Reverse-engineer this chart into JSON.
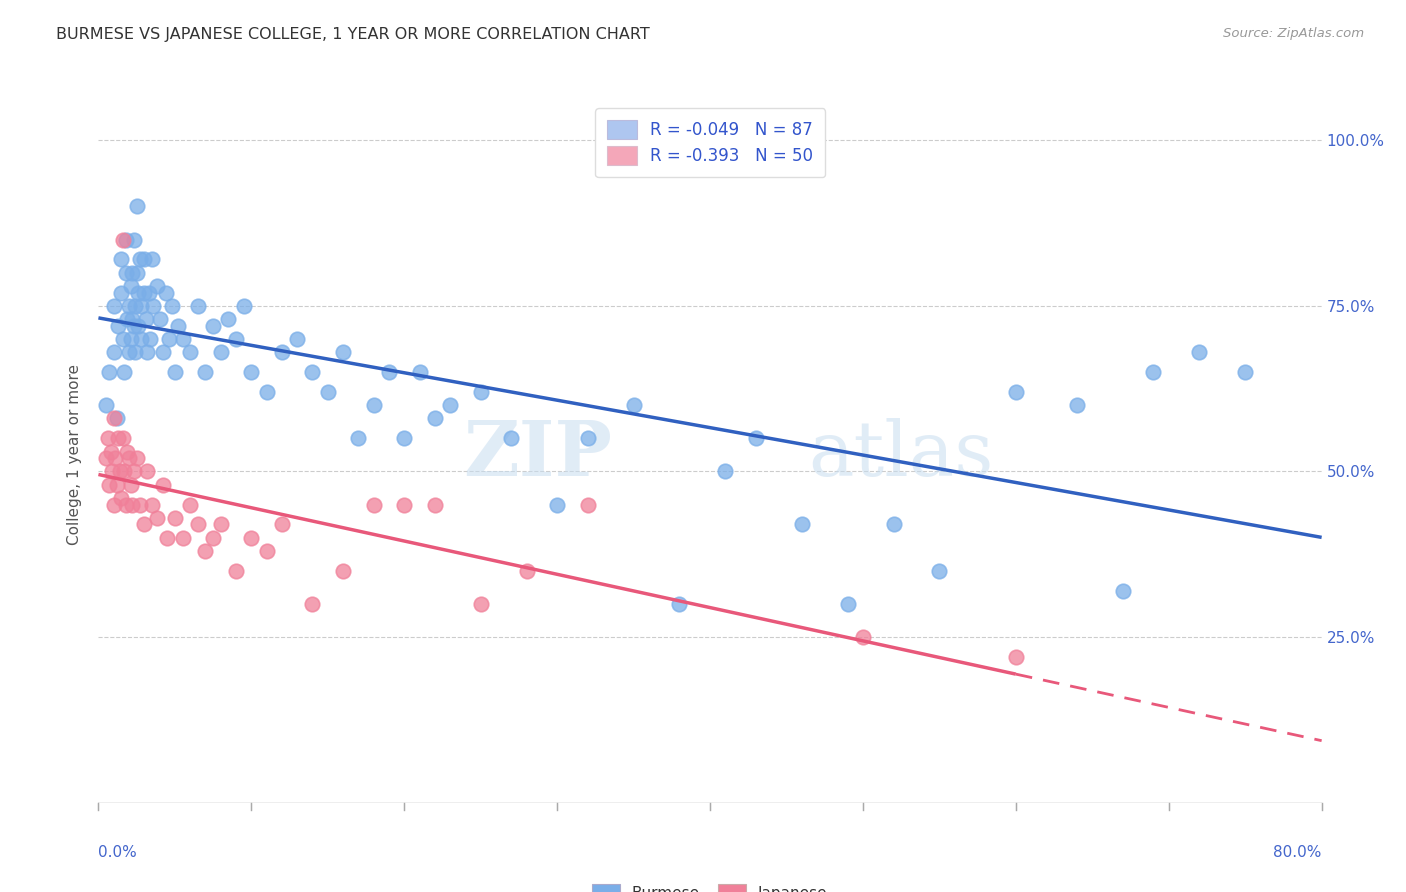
{
  "title": "BURMESE VS JAPANESE COLLEGE, 1 YEAR OR MORE CORRELATION CHART",
  "source": "Source: ZipAtlas.com",
  "ylabel": "College, 1 year or more",
  "ytick_labels": [
    "",
    "25.0%",
    "50.0%",
    "75.0%",
    "100.0%"
  ],
  "ytick_values": [
    0.0,
    0.25,
    0.5,
    0.75,
    1.0
  ],
  "xlim": [
    0.0,
    0.8
  ],
  "ylim": [
    0.0,
    1.05
  ],
  "legend_entries": [
    {
      "label": "R = -0.049   N = 87",
      "color": "#aec6f0"
    },
    {
      "label": "R = -0.393   N = 50",
      "color": "#f4a7b9"
    }
  ],
  "burmese_color": "#7aaee8",
  "japanese_color": "#f08099",
  "trendline_burmese_color": "#3060c0",
  "trendline_japanese_color": "#e8587a",
  "watermark_zip": "ZIP",
  "watermark_atlas": "atlas",
  "burmese_x": [
    0.005,
    0.007,
    0.01,
    0.01,
    0.012,
    0.013,
    0.015,
    0.015,
    0.016,
    0.017,
    0.018,
    0.018,
    0.019,
    0.02,
    0.02,
    0.021,
    0.021,
    0.022,
    0.022,
    0.023,
    0.023,
    0.024,
    0.024,
    0.025,
    0.025,
    0.026,
    0.026,
    0.027,
    0.028,
    0.028,
    0.03,
    0.03,
    0.031,
    0.032,
    0.033,
    0.034,
    0.035,
    0.036,
    0.038,
    0.04,
    0.042,
    0.044,
    0.046,
    0.048,
    0.05,
    0.052,
    0.055,
    0.06,
    0.065,
    0.07,
    0.075,
    0.08,
    0.085,
    0.09,
    0.095,
    0.1,
    0.11,
    0.12,
    0.13,
    0.14,
    0.15,
    0.16,
    0.17,
    0.18,
    0.19,
    0.2,
    0.21,
    0.22,
    0.23,
    0.25,
    0.27,
    0.3,
    0.32,
    0.35,
    0.38,
    0.41,
    0.43,
    0.46,
    0.49,
    0.52,
    0.55,
    0.6,
    0.64,
    0.67,
    0.69,
    0.72,
    0.75
  ],
  "burmese_y": [
    0.6,
    0.65,
    0.68,
    0.75,
    0.58,
    0.72,
    0.77,
    0.82,
    0.7,
    0.65,
    0.8,
    0.85,
    0.73,
    0.68,
    0.75,
    0.7,
    0.78,
    0.73,
    0.8,
    0.72,
    0.85,
    0.68,
    0.75,
    0.8,
    0.9,
    0.72,
    0.77,
    0.82,
    0.75,
    0.7,
    0.77,
    0.82,
    0.73,
    0.68,
    0.77,
    0.7,
    0.82,
    0.75,
    0.78,
    0.73,
    0.68,
    0.77,
    0.7,
    0.75,
    0.65,
    0.72,
    0.7,
    0.68,
    0.75,
    0.65,
    0.72,
    0.68,
    0.73,
    0.7,
    0.75,
    0.65,
    0.62,
    0.68,
    0.7,
    0.65,
    0.62,
    0.68,
    0.55,
    0.6,
    0.65,
    0.55,
    0.65,
    0.58,
    0.6,
    0.62,
    0.55,
    0.45,
    0.55,
    0.6,
    0.3,
    0.5,
    0.55,
    0.42,
    0.3,
    0.42,
    0.35,
    0.62,
    0.6,
    0.32,
    0.65,
    0.68,
    0.65
  ],
  "japanese_x": [
    0.005,
    0.006,
    0.007,
    0.008,
    0.009,
    0.01,
    0.01,
    0.011,
    0.012,
    0.013,
    0.014,
    0.015,
    0.016,
    0.016,
    0.017,
    0.018,
    0.019,
    0.02,
    0.021,
    0.022,
    0.023,
    0.025,
    0.027,
    0.03,
    0.032,
    0.035,
    0.038,
    0.042,
    0.045,
    0.05,
    0.055,
    0.06,
    0.065,
    0.07,
    0.075,
    0.08,
    0.09,
    0.1,
    0.11,
    0.12,
    0.14,
    0.16,
    0.18,
    0.2,
    0.22,
    0.25,
    0.28,
    0.32,
    0.5,
    0.6
  ],
  "japanese_y": [
    0.52,
    0.55,
    0.48,
    0.53,
    0.5,
    0.45,
    0.58,
    0.52,
    0.48,
    0.55,
    0.5,
    0.46,
    0.85,
    0.55,
    0.5,
    0.45,
    0.53,
    0.52,
    0.48,
    0.45,
    0.5,
    0.52,
    0.45,
    0.42,
    0.5,
    0.45,
    0.43,
    0.48,
    0.4,
    0.43,
    0.4,
    0.45,
    0.42,
    0.38,
    0.4,
    0.42,
    0.35,
    0.4,
    0.38,
    0.42,
    0.3,
    0.35,
    0.45,
    0.45,
    0.45,
    0.3,
    0.35,
    0.45,
    0.25,
    0.22
  ]
}
